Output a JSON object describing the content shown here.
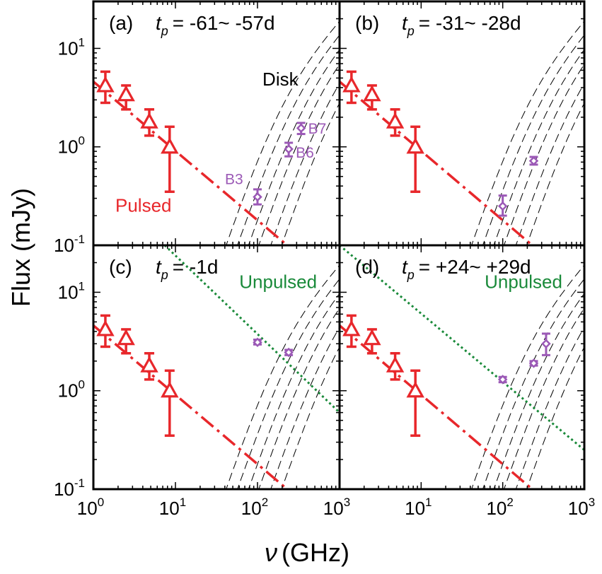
{
  "figure": {
    "ylabel": "Flux (mJy)",
    "xlabel_symbol": "ν",
    "xlabel_unit": "(GHz)",
    "x_ticks": [
      {
        "base": "10",
        "exp": "0",
        "value": 1
      },
      {
        "base": "10",
        "exp": "1",
        "value": 10
      },
      {
        "base": "10",
        "exp": "2",
        "value": 100
      },
      {
        "base": "10",
        "exp": "3",
        "value": 1000
      }
    ],
    "y_ticks": [
      {
        "base": "10",
        "exp": "-1",
        "value": 0.1
      },
      {
        "base": "10",
        "exp": "0",
        "value": 1
      },
      {
        "base": "10",
        "exp": "1",
        "value": 10
      }
    ]
  },
  "colors": {
    "pulsed": "#e8272b",
    "alma": "#9b59b6",
    "unpulsed": "#1a8a3a",
    "disk": "#000000"
  },
  "chart_data": [
    {
      "type": "scatter",
      "panel": "a",
      "label": "(a)",
      "tp_text": "= -61~ -57d",
      "xlim": [
        1,
        1000
      ],
      "ylim": [
        0.1,
        30
      ],
      "pulsed": {
        "x": [
          1.4,
          2.5,
          4.8,
          8.5
        ],
        "y": [
          4.2,
          3.4,
          1.8,
          1.0
        ],
        "yerr_low": [
          2.8,
          2.4,
          1.3,
          0.35
        ],
        "yerr_high": [
          5.8,
          4.2,
          2.4,
          1.6
        ]
      },
      "pulsed_fit": {
        "x0": 1,
        "y0": 4.6,
        "x1": 230,
        "y1": 0.1
      },
      "alma": {
        "x": [
          100,
          240,
          340
        ],
        "y": [
          0.31,
          0.95,
          1.55
        ],
        "yerr_low": [
          0.26,
          0.8,
          1.35
        ],
        "yerr_high": [
          0.37,
          1.1,
          1.75
        ],
        "labels": [
          "B3",
          "B6",
          "B7"
        ]
      },
      "show_disk_label": true,
      "disk_label": "Disk",
      "pulsed_label": "Pulsed",
      "unpulsed": null
    },
    {
      "type": "scatter",
      "panel": "b",
      "label": "(b)",
      "tp_text": "= -31~ -28d",
      "xlim": [
        1,
        1000
      ],
      "ylim": [
        0.1,
        30
      ],
      "pulsed": {
        "x": [
          1.4,
          2.5,
          4.8,
          8.5
        ],
        "y": [
          4.2,
          3.4,
          1.8,
          1.0
        ],
        "yerr_low": [
          2.8,
          2.4,
          1.3,
          0.35
        ],
        "yerr_high": [
          5.8,
          4.2,
          2.4,
          1.6
        ]
      },
      "pulsed_fit": {
        "x0": 1,
        "y0": 4.6,
        "x1": 230,
        "y1": 0.1
      },
      "alma": {
        "x": [
          100,
          240
        ],
        "y": [
          0.25,
          0.72
        ],
        "yerr_low": [
          0.2,
          0.66
        ],
        "yerr_high": [
          0.32,
          0.79
        ],
        "labels": []
      },
      "show_disk_label": false,
      "unpulsed": null
    },
    {
      "type": "scatter",
      "panel": "c",
      "label": "(c)",
      "tp_text": "= -1d",
      "xlim": [
        1,
        1000
      ],
      "ylim": [
        0.1,
        30
      ],
      "pulsed": {
        "x": [
          1.4,
          2.5,
          4.8,
          8.5
        ],
        "y": [
          4.2,
          3.4,
          1.8,
          1.0
        ],
        "yerr_low": [
          2.8,
          2.4,
          1.3,
          0.35
        ],
        "yerr_high": [
          5.8,
          4.2,
          2.4,
          1.6
        ]
      },
      "pulsed_fit": {
        "x0": 1,
        "y0": 4.6,
        "x1": 230,
        "y1": 0.1
      },
      "alma": {
        "x": [
          100,
          240
        ],
        "y": [
          3.1,
          2.45
        ],
        "yerr_low": [
          2.95,
          2.3
        ],
        "yerr_high": [
          3.3,
          2.6
        ],
        "labels": []
      },
      "show_disk_label": false,
      "unpulsed": {
        "label": "Unpulsed",
        "x0": 7.4,
        "y0": 30,
        "x1": 1000,
        "y1": 0.6
      }
    },
    {
      "type": "scatter",
      "panel": "d",
      "label": "(d)",
      "tp_text": "= +24~ +29d",
      "xlim": [
        1,
        1000
      ],
      "ylim": [
        0.1,
        30
      ],
      "pulsed": {
        "x": [
          1.4,
          2.5,
          4.8,
          8.5
        ],
        "y": [
          4.2,
          3.4,
          1.8,
          1.0
        ],
        "yerr_low": [
          2.8,
          2.4,
          1.3,
          0.35
        ],
        "yerr_high": [
          5.8,
          4.2,
          2.4,
          1.6
        ]
      },
      "pulsed_fit": {
        "x0": 1,
        "y0": 4.6,
        "x1": 230,
        "y1": 0.1
      },
      "alma": {
        "x": [
          100,
          240,
          340
        ],
        "y": [
          1.3,
          1.9,
          3.0
        ],
        "yerr_low": [
          1.22,
          1.8,
          2.3
        ],
        "yerr_high": [
          1.38,
          2.0,
          3.8
        ],
        "labels": []
      },
      "show_disk_label": false,
      "unpulsed": {
        "label": "Unpulsed",
        "x0": 1,
        "y0": 30,
        "x1": 1000,
        "y1": 0.25
      }
    }
  ],
  "disk_models": [
    {
      "slope": 2.5,
      "x0": 40
    },
    {
      "slope": 2.5,
      "x0": 55
    },
    {
      "slope": 2.5,
      "x0": 75
    },
    {
      "slope": 2.5,
      "x0": 100
    },
    {
      "slope": 2.5,
      "x0": 140
    },
    {
      "slope": 2.5,
      "x0": 190
    }
  ]
}
